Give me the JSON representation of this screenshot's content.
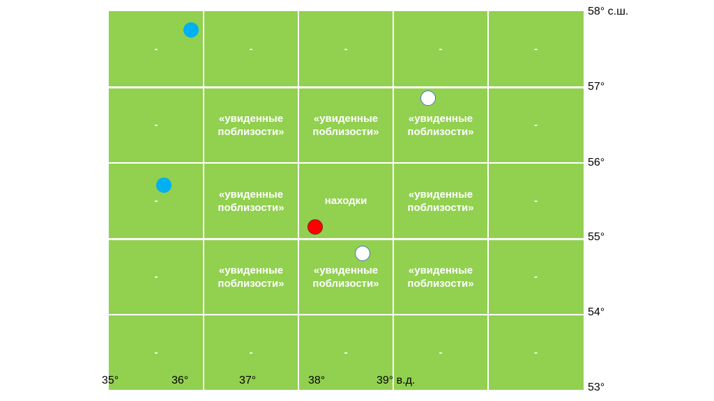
{
  "grid": {
    "rows": [
      [
        "-",
        "-",
        "-",
        "-",
        "-"
      ],
      [
        "-",
        "«увиденные поблизости»",
        "«увиденные поблизости»",
        "«увиденные поблизости»",
        "-"
      ],
      [
        "-",
        "«увиденные поблизости»",
        "находки",
        "«увиденные поблизости»",
        "-"
      ],
      [
        "-",
        "«увиденные поблизости»",
        "«увиденные поблизости»",
        "«увиденные поблизости»",
        "-"
      ],
      [
        "-",
        "-",
        "-",
        "-",
        "-"
      ]
    ]
  },
  "latitude_labels": [
    "58° с.ш.",
    "57°",
    "56°",
    "55°",
    "54°",
    "53°"
  ],
  "longitude_labels": [
    "35°",
    "36°",
    "37°",
    "38°",
    "39° в.д."
  ],
  "markers": [
    {
      "type": "blue",
      "lon": 36.2,
      "lat": 57.75
    },
    {
      "type": "white",
      "lon": 39.65,
      "lat": 56.85
    },
    {
      "type": "blue",
      "lon": 35.8,
      "lat": 55.7
    },
    {
      "type": "red",
      "lon": 38.0,
      "lat": 55.15
    },
    {
      "type": "white",
      "lon": 38.7,
      "lat": 54.8
    }
  ],
  "colors": {
    "grid_fill": "#92d050",
    "blue_marker": "#00b0f0",
    "red_marker": "#ff0000",
    "white_marker": "#ffffff",
    "marker_outline": "#4472c4"
  }
}
